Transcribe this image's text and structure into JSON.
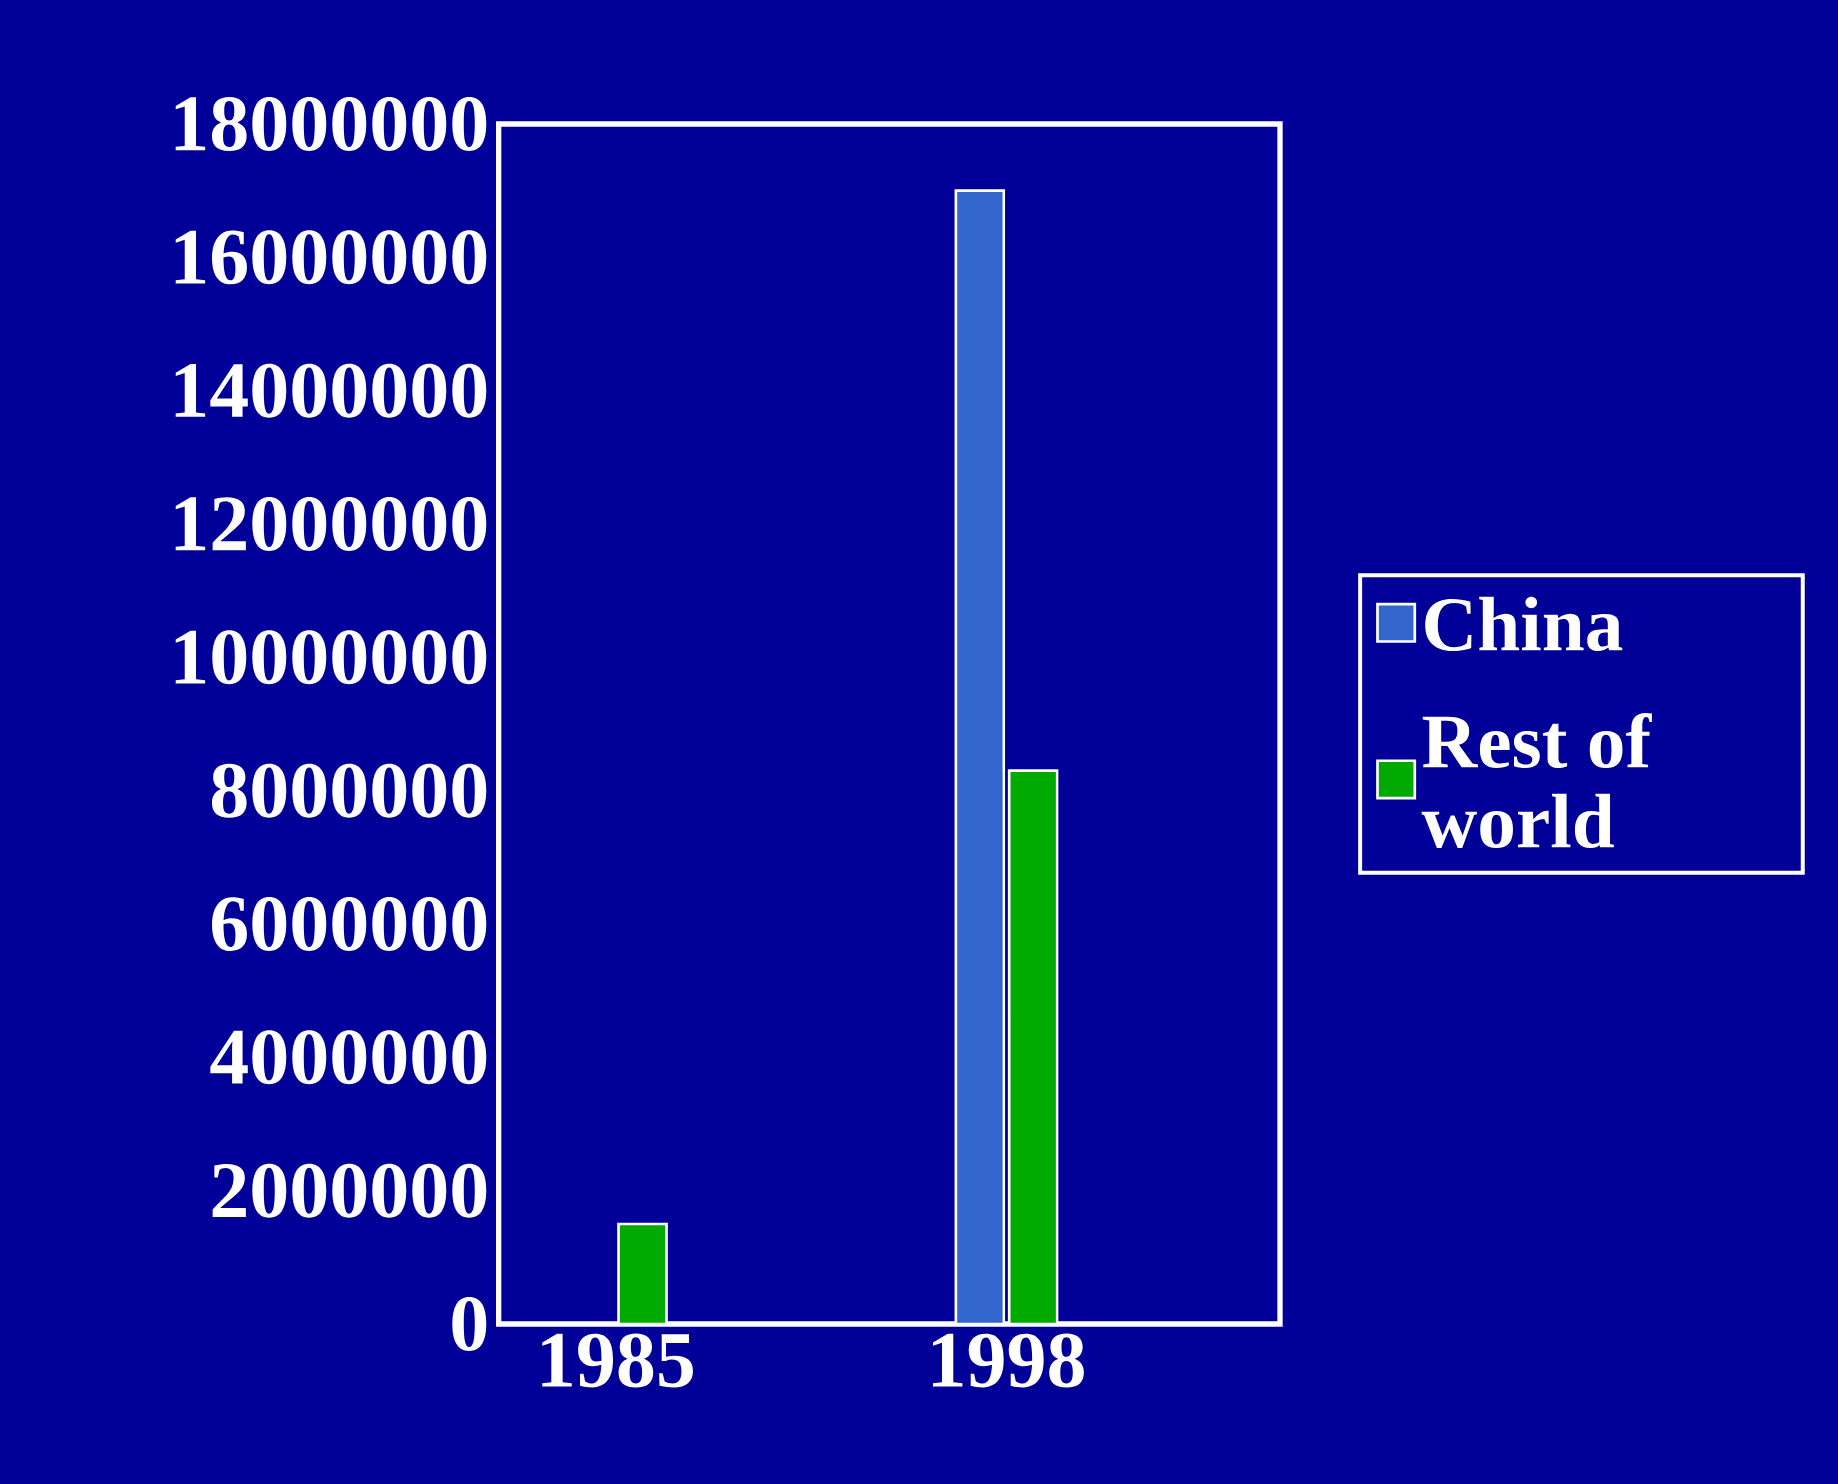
{
  "chart_data": {
    "type": "bar",
    "categories": [
      "1985",
      "1998"
    ],
    "series": [
      {
        "name": "China",
        "color": "#3366cc",
        "values": [
          0,
          17000000
        ]
      },
      {
        "name": "Rest of world",
        "color": "#00aa00",
        "values": [
          1500000,
          8300000
        ]
      }
    ],
    "ylim": [
      0,
      18000000
    ],
    "yticks": [
      0,
      2000000,
      4000000,
      6000000,
      8000000,
      10000000,
      12000000,
      14000000,
      16000000,
      18000000
    ],
    "legend": "right",
    "grid": false
  }
}
